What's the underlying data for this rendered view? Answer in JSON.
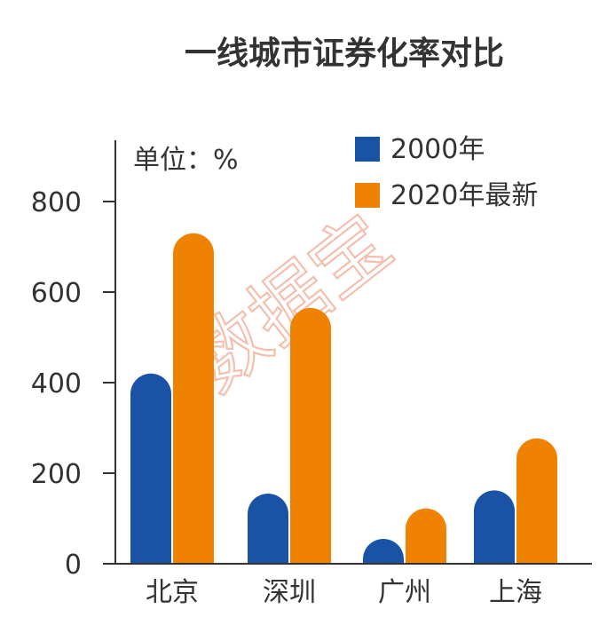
{
  "chart_data": {
    "type": "bar",
    "title": "一线城市证券化率对比",
    "unit_label": "单位：%",
    "categories": [
      "北京",
      "深圳",
      "广州",
      "上海"
    ],
    "series": [
      {
        "name": "2000年",
        "color": "#1a52a5",
        "values": [
          420,
          155,
          55,
          162
        ]
      },
      {
        "name": "2020年最新",
        "color": "#ef8200",
        "values": [
          730,
          565,
          122,
          277
        ]
      }
    ],
    "y_ticks": [
      "0",
      "200",
      "400",
      "600",
      "800"
    ],
    "ylim": [
      0,
      900
    ],
    "grid": false,
    "legend_position": "top-right",
    "watermark": "数据宝"
  }
}
